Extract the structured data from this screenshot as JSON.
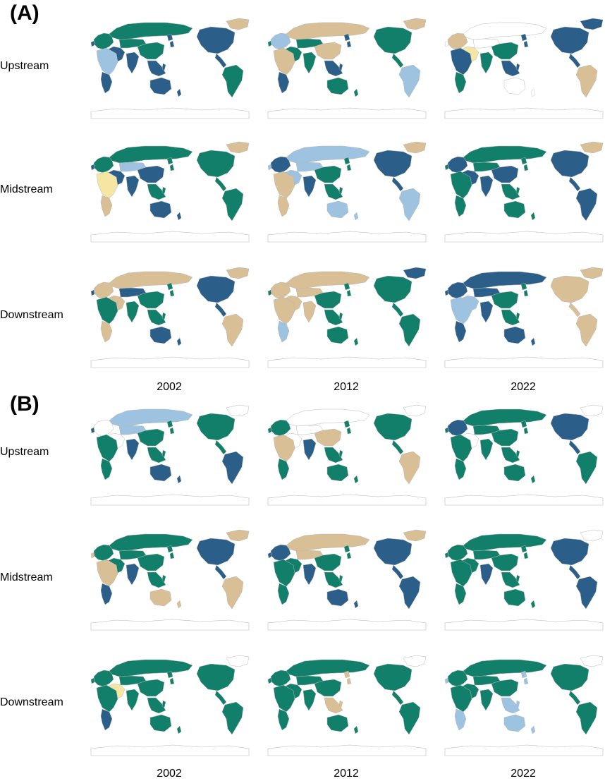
{
  "colors": {
    "c1": "#127F6A",
    "c2": "#2B5F8A",
    "c3": "#D9BF95",
    "c4": "#9DC3E1",
    "c5": "#F5E6A3",
    "c6": "#E5746B",
    "none": "#FFFFFF",
    "border": "#B8B8B8"
  },
  "panels": [
    {
      "label": "(A)",
      "rows": [
        "Upstream",
        "Midstream",
        "Downstream"
      ],
      "years": [
        "2002",
        "2012",
        "2022"
      ],
      "maps": [
        [
          {
            "na": "c2",
            "green": "c3",
            "sa": "c1",
            "eu": "c1",
            "af": "c4",
            "me": "c2",
            "ru": "c1",
            "ca": "c1",
            "cn": "c1",
            "in": "c2",
            "sea": "c2",
            "au": "c2",
            "afs": "c2"
          },
          {
            "na": "c1",
            "green": "c3",
            "sa": "c4",
            "eu": "c4",
            "af": "c3",
            "me": "c1",
            "ru": "c3",
            "ca": "c1",
            "cn": "c3",
            "in": "c1",
            "sea": "c2",
            "au": "c1",
            "afs": "c2"
          },
          {
            "na": "c2",
            "green": "c2",
            "sa": "c3",
            "eu": "c3",
            "af": "c2",
            "me": "c5",
            "ru": "none",
            "ca": "none",
            "cn": "c1",
            "in": "c1",
            "sea": "c2",
            "au": "none",
            "afs": "c1"
          }
        ],
        [
          {
            "na": "c1",
            "green": "c3",
            "sa": "c1",
            "eu": "c1",
            "af": "c5",
            "me": "c2",
            "ru": "c1",
            "ca": "c4",
            "cn": "c2",
            "in": "c2",
            "sea": "c1",
            "au": "c2",
            "afs": "c3"
          },
          {
            "na": "c2",
            "green": "c3",
            "sa": "c4",
            "eu": "c2",
            "af": "c3",
            "me": "c4",
            "ru": "c4",
            "ca": "c4",
            "cn": "c1",
            "in": "c2",
            "sea": "c1",
            "au": "c4",
            "afs": "c3"
          },
          {
            "na": "c2",
            "green": "c3",
            "sa": "c2",
            "eu": "c2",
            "af": "c1",
            "me": "c2",
            "ru": "c1",
            "ca": "c1",
            "cn": "c2",
            "in": "c2",
            "sea": "c1",
            "au": "c1",
            "afs": "c1"
          }
        ],
        [
          {
            "na": "c2",
            "green": "c3",
            "sa": "c3",
            "eu": "c3",
            "af": "c1",
            "me": "c3",
            "ru": "c3",
            "ca": "c2",
            "cn": "c1",
            "in": "c1",
            "sea": "c1",
            "au": "c2",
            "afs": "c3"
          },
          {
            "na": "c1",
            "green": "c2",
            "sa": "c1",
            "eu": "c3",
            "af": "c3",
            "me": "c3",
            "ru": "c3",
            "ca": "c3",
            "cn": "c1",
            "in": "c3",
            "sea": "c1",
            "au": "c1",
            "afs": "c4"
          },
          {
            "na": "c3",
            "green": "c3",
            "sa": "c3",
            "eu": "c2",
            "af": "c4",
            "me": "c4",
            "ru": "c2",
            "ca": "c2",
            "cn": "c1",
            "in": "c2",
            "sea": "c1",
            "au": "c2",
            "afs": "c2"
          }
        ]
      ]
    },
    {
      "label": "(B)",
      "rows": [
        "Upstream",
        "Midstream",
        "Downstream"
      ],
      "years": [
        "2002",
        "2012",
        "2022"
      ],
      "maps": [
        [
          {
            "na": "c1",
            "green": "none",
            "sa": "c2",
            "eu": "none",
            "af": "c1",
            "me": "none",
            "ru": "c4",
            "ca": "c4",
            "cn": "c1",
            "in": "c2",
            "sea": "c1",
            "au": "c2",
            "afs": "c1"
          },
          {
            "na": "c1",
            "green": "none",
            "sa": "c3",
            "eu": "c1",
            "af": "c3",
            "me": "none",
            "ru": "none",
            "ca": "none",
            "cn": "c3",
            "in": "c2",
            "sea": "c1",
            "au": "c1",
            "afs": "c1"
          },
          {
            "na": "c2",
            "green": "none",
            "sa": "c1",
            "eu": "c2",
            "af": "c1",
            "me": "none",
            "ru": "c1",
            "ca": "c1",
            "cn": "c1",
            "in": "c1",
            "sea": "c1",
            "au": "c1",
            "afs": "c1"
          }
        ],
        [
          {
            "na": "c2",
            "green": "c3",
            "sa": "c3",
            "eu": "c1",
            "af": "c3",
            "me": "c1",
            "ru": "c1",
            "ca": "c1",
            "cn": "c1",
            "in": "c2",
            "sea": "c1",
            "au": "c3",
            "afs": "c2"
          },
          {
            "na": "c2",
            "green": "c3",
            "sa": "c2",
            "eu": "c2",
            "af": "c1",
            "me": "c1",
            "ru": "c3",
            "ca": "c3",
            "cn": "c1",
            "in": "c2",
            "sea": "c1",
            "au": "c2",
            "afs": "c1"
          },
          {
            "na": "c2",
            "green": "none",
            "sa": "c2",
            "eu": "c1",
            "af": "c1",
            "me": "c1",
            "ru": "c1",
            "ca": "c1",
            "cn": "c1",
            "in": "c2",
            "sea": "c1",
            "au": "c1",
            "afs": "c1"
          }
        ],
        [
          {
            "na": "c1",
            "green": "none",
            "sa": "c1",
            "eu": "c1",
            "af": "c1",
            "me": "c5",
            "ru": "c1",
            "ca": "c1",
            "cn": "c1",
            "in": "c1",
            "sea": "c1",
            "au": "c1",
            "afs": "c2"
          },
          {
            "na": "c1",
            "green": "none",
            "sa": "c1",
            "eu": "c1",
            "af": "c1",
            "me": "c1",
            "ru": "c1",
            "ca": "c1",
            "cn": "c1",
            "in": "c1",
            "sea": "c3",
            "au": "c1",
            "afs": "c1"
          },
          {
            "na": "c1",
            "green": "none",
            "sa": "c1",
            "eu": "c1",
            "af": "c1",
            "me": "c1",
            "ru": "c1",
            "ca": "c1",
            "cn": "c1",
            "in": "c1",
            "sea": "c4",
            "au": "c4",
            "afs": "c4"
          }
        ]
      ]
    }
  ]
}
